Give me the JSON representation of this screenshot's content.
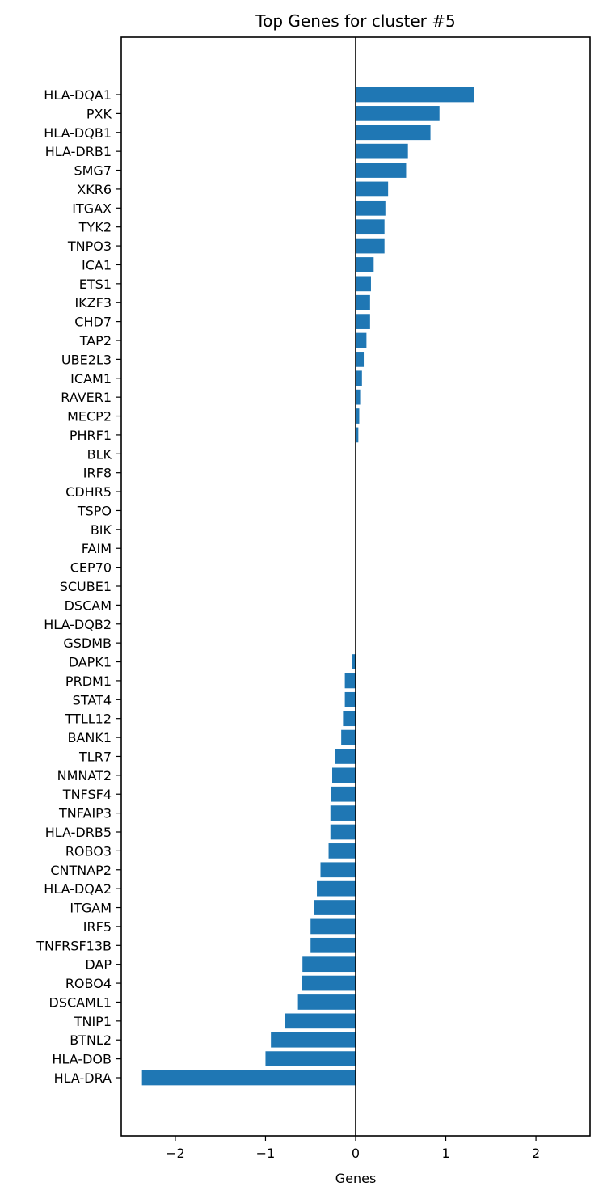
{
  "chart_data": {
    "type": "bar",
    "orientation": "horizontal",
    "title": "Top Genes for cluster #5",
    "xlabel": "Genes",
    "ylabel": "",
    "xlim": [
      -2.6,
      2.6
    ],
    "xticks": [
      -2,
      -1,
      0,
      1,
      2
    ],
    "xtick_labels": [
      "−2",
      "−1",
      "0",
      "1",
      "2"
    ],
    "grid": false,
    "zero_line": true,
    "bar_color": "#1f77b4",
    "categories": [
      "HLA-DQA1",
      "PXK",
      "HLA-DQB1",
      "HLA-DRB1",
      "SMG7",
      "XKR6",
      "ITGAX",
      "TYK2",
      "TNPO3",
      "ICA1",
      "ETS1",
      "IKZF3",
      "CHD7",
      "TAP2",
      "UBE2L3",
      "ICAM1",
      "RAVER1",
      "MECP2",
      "PHRF1",
      "BLK",
      "IRF8",
      "CDHR5",
      "TSPO",
      "BIK",
      "FAIM",
      "CEP70",
      "SCUBE1",
      "DSCAM",
      "HLA-DQB2",
      "GSDMB",
      "DAPK1",
      "PRDM1",
      "STAT4",
      "TTLL12",
      "BANK1",
      "TLR7",
      "NMNAT2",
      "TNFSF4",
      "TNFAIP3",
      "HLA-DRB5",
      "ROBO3",
      "CNTNAP2",
      "HLA-DQA2",
      "ITGAM",
      "IRF5",
      "TNFRSF13B",
      "DAP",
      "ROBO4",
      "DSCAML1",
      "TNIP1",
      "BTNL2",
      "HLA-DOB",
      "HLA-DRA"
    ],
    "values": [
      1.31,
      0.93,
      0.83,
      0.58,
      0.56,
      0.36,
      0.33,
      0.32,
      0.32,
      0.2,
      0.17,
      0.16,
      0.16,
      0.12,
      0.09,
      0.07,
      0.05,
      0.04,
      0.03,
      0.0,
      0.0,
      0.0,
      0.0,
      0.0,
      0.0,
      0.0,
      0.0,
      0.0,
      0.0,
      0.0,
      -0.04,
      -0.12,
      -0.12,
      -0.14,
      -0.16,
      -0.23,
      -0.26,
      -0.27,
      -0.28,
      -0.28,
      -0.3,
      -0.39,
      -0.43,
      -0.46,
      -0.5,
      -0.5,
      -0.59,
      -0.6,
      -0.64,
      -0.78,
      -0.94,
      -1.0,
      -2.37
    ]
  }
}
